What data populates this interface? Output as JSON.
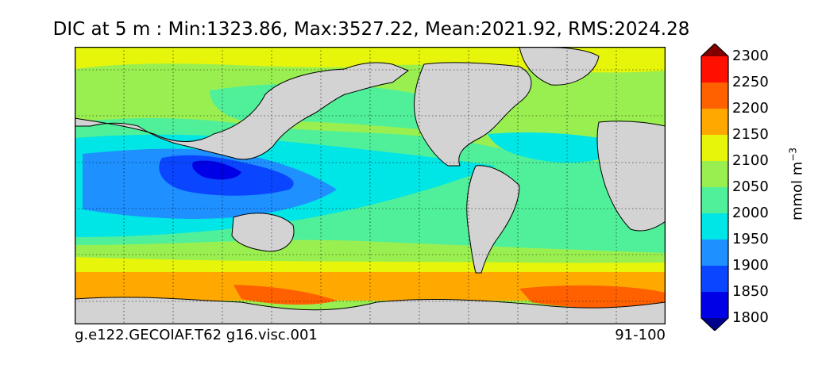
{
  "title": "DIC at 5 m : Min:1323.86, Max:3527.22, Mean:2021.92, RMS:2024.28",
  "footer": {
    "experiment": "g.e122.GECOIAF.T62 g16.visc.001",
    "years": "91-100"
  },
  "colorbar": {
    "unit": "mmol m",
    "unit_sup": "−3",
    "levels": [
      "1800",
      "1850",
      "1900",
      "1950",
      "2000",
      "2050",
      "2100",
      "2150",
      "2200",
      "2250",
      "2300"
    ],
    "colors": [
      "#00008f",
      "#0000e6",
      "#0a46ff",
      "#1e90ff",
      "#00e5e5",
      "#50f09a",
      "#9aef50",
      "#e6f50a",
      "#ffa800",
      "#ff6000",
      "#ff1000",
      "#800000"
    ],
    "extend": "both"
  },
  "map": {
    "projection": "cylindrical",
    "land_color": "#d3d3d3",
    "graticule": "dotted",
    "contour_fill": "on"
  }
}
